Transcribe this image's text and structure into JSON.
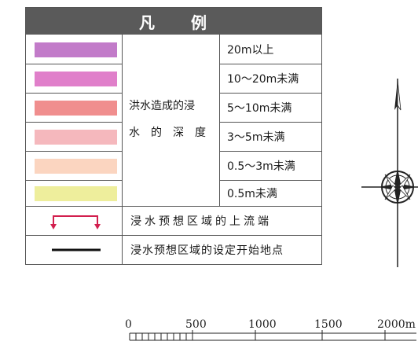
{
  "legend": {
    "title_part1": "凡",
    "title_part2": "例",
    "caption_line1": "洪水造成的浸",
    "caption_line2": "水的深度",
    "depth_levels": [
      {
        "label": "20m以上",
        "color": "#c27bc9"
      },
      {
        "label": "10～20m未满",
        "color": "#e07fca"
      },
      {
        "label": "5～10m未满",
        "color": "#f08e8e"
      },
      {
        "label": "3～5m未满",
        "color": "#f5b8bd"
      },
      {
        "label": "0.5～3m未满",
        "color": "#fbd5c0"
      },
      {
        "label": "0.5m未满",
        "color": "#eeee9c"
      }
    ],
    "upstream_label": "浸水预想区域的上流端",
    "upstream_symbol_color": "#d21f4e",
    "startpoint_label": "浸水预想区域的设定开始地点",
    "startpoint_symbol_color": "#111111"
  },
  "compass": {
    "icon": "compass-rose-icon"
  },
  "scale": {
    "ticks": [
      "0",
      "500",
      "1000",
      "1500",
      "2000m"
    ]
  }
}
